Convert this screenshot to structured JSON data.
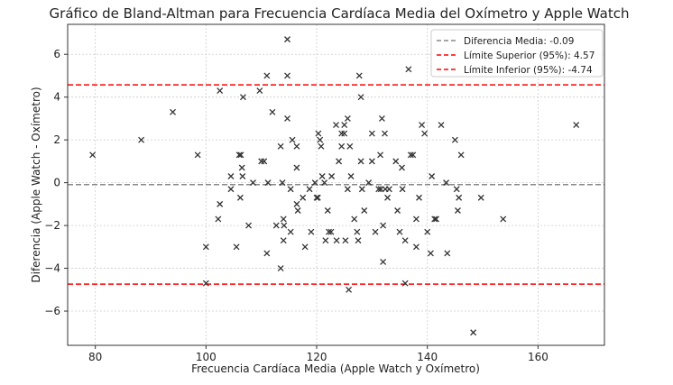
{
  "chart_data": {
    "type": "scatter",
    "title": "Gráfico de Bland-Altman para Frecuencia Cardíaca Media del Oxímetro y Apple Watch",
    "xlabel": "Frecuencia Cardíaca Media (Apple Watch y Oxímetro)",
    "ylabel": "Diferencia (Apple Watch - Oxímetro)",
    "xlim": [
      75,
      172
    ],
    "ylim": [
      -7.6,
      7.4
    ],
    "xticks": [
      80,
      100,
      120,
      140,
      160
    ],
    "yticks": [
      -6,
      -4,
      -2,
      0,
      2,
      4,
      6
    ],
    "grid": true,
    "legend_position": "top-right",
    "reference_lines": [
      {
        "label": "Diferencia Media: -0.09",
        "value": -0.09,
        "color": "#888888"
      },
      {
        "label": "Límite Superior (95%): 4.57",
        "value": 4.57,
        "color": "#ff0000"
      },
      {
        "label": "Límite Inferior (95%): -4.74",
        "value": -4.74,
        "color": "#ff0000"
      }
    ],
    "marker_color": "#333333",
    "points": [
      [
        79.5,
        1.3
      ],
      [
        88.3,
        2.0
      ],
      [
        94,
        3.3
      ],
      [
        98.5,
        1.3
      ],
      [
        100,
        -3
      ],
      [
        100,
        -4.7
      ],
      [
        102.5,
        4.3
      ],
      [
        102.5,
        -1
      ],
      [
        102.2,
        -1.7
      ],
      [
        104.5,
        0.3
      ],
      [
        104.5,
        -0.3
      ],
      [
        105.5,
        -3
      ],
      [
        106,
        1.3
      ],
      [
        106.3,
        1.3
      ],
      [
        106.2,
        -0.7
      ],
      [
        106.7,
        4
      ],
      [
        106.5,
        0.7
      ],
      [
        106.6,
        0.3
      ],
      [
        107.7,
        -2
      ],
      [
        108.5,
        0
      ],
      [
        109.7,
        4.3
      ],
      [
        110,
        1
      ],
      [
        110.5,
        1
      ],
      [
        111,
        5
      ],
      [
        111.2,
        0
      ],
      [
        111,
        -3.3
      ],
      [
        112,
        3.3
      ],
      [
        112.7,
        -2
      ],
      [
        113.5,
        1.7
      ],
      [
        113.5,
        -4
      ],
      [
        113.8,
        0
      ],
      [
        114,
        -1.7
      ],
      [
        114,
        -2.7
      ],
      [
        114.1,
        -2
      ],
      [
        114.7,
        6.7
      ],
      [
        114.7,
        5
      ],
      [
        114.7,
        3
      ],
      [
        115.3,
        -0.3
      ],
      [
        115.6,
        2
      ],
      [
        115.3,
        -2.3
      ],
      [
        116.4,
        0.7
      ],
      [
        116.4,
        1.7
      ],
      [
        116.4,
        -1
      ],
      [
        116.6,
        -1.3
      ],
      [
        117.5,
        -0.7
      ],
      [
        117.9,
        -3
      ],
      [
        118.7,
        -0.3
      ],
      [
        119,
        -2.3
      ],
      [
        119.7,
        0
      ],
      [
        120,
        -0.7
      ],
      [
        120.2,
        -0.7
      ],
      [
        120.3,
        2.3
      ],
      [
        120.6,
        2
      ],
      [
        120.8,
        1.7
      ],
      [
        121,
        0.3
      ],
      [
        121.4,
        0
      ],
      [
        121.6,
        -2.7
      ],
      [
        122,
        -1.3
      ],
      [
        122.2,
        -2.3
      ],
      [
        122.6,
        -2.3
      ],
      [
        122.7,
        0.3
      ],
      [
        123.5,
        2.7
      ],
      [
        123.6,
        -2.7
      ],
      [
        124,
        1
      ],
      [
        124.5,
        1.7
      ],
      [
        124.5,
        2.3
      ],
      [
        125,
        2.3
      ],
      [
        125,
        2.7
      ],
      [
        125.2,
        -2.7
      ],
      [
        125.6,
        3
      ],
      [
        125.6,
        -0.3
      ],
      [
        125.8,
        -5
      ],
      [
        126,
        1.7
      ],
      [
        126.2,
        0.3
      ],
      [
        126.8,
        -1.7
      ],
      [
        127.3,
        -2.3
      ],
      [
        127.5,
        -2.7
      ],
      [
        127.7,
        5
      ],
      [
        128,
        4
      ],
      [
        128,
        1
      ],
      [
        128.2,
        -0.3
      ],
      [
        128.6,
        -1.3
      ],
      [
        129.4,
        0
      ],
      [
        130,
        1
      ],
      [
        130,
        2.3
      ],
      [
        130.6,
        -2.3
      ],
      [
        131.2,
        -0.3
      ],
      [
        131.5,
        1.3
      ],
      [
        131.6,
        -0.3
      ],
      [
        131.8,
        3
      ],
      [
        132,
        -3.7
      ],
      [
        132,
        -2
      ],
      [
        132.3,
        2.3
      ],
      [
        132.4,
        -0.3
      ],
      [
        132.8,
        -0.7
      ],
      [
        133.1,
        -0.3
      ],
      [
        134.3,
        1
      ],
      [
        134.6,
        -1.3
      ],
      [
        135,
        -2.3
      ],
      [
        135.4,
        0.7
      ],
      [
        135.5,
        -0.3
      ],
      [
        136,
        -4.7
      ],
      [
        136,
        -2.7
      ],
      [
        136.6,
        5.3
      ],
      [
        137,
        1.3
      ],
      [
        137.4,
        1.3
      ],
      [
        138,
        -1.7
      ],
      [
        138,
        -3
      ],
      [
        138.5,
        -0.7
      ],
      [
        139,
        2.7
      ],
      [
        139.5,
        2.3
      ],
      [
        140,
        -2.3
      ],
      [
        140.6,
        -3.3
      ],
      [
        140.8,
        0.3
      ],
      [
        141.3,
        -1.7
      ],
      [
        141.6,
        -1.7
      ],
      [
        142.5,
        2.7
      ],
      [
        143.4,
        0
      ],
      [
        143.6,
        -3.3
      ],
      [
        145,
        2
      ],
      [
        145.3,
        -0.3
      ],
      [
        145.5,
        -1.3
      ],
      [
        146.1,
        1.3
      ],
      [
        145.7,
        -0.7
      ],
      [
        148.3,
        -7
      ],
      [
        149.7,
        -0.7
      ],
      [
        153.7,
        -1.7
      ],
      [
        166.9,
        2.7
      ]
    ]
  }
}
